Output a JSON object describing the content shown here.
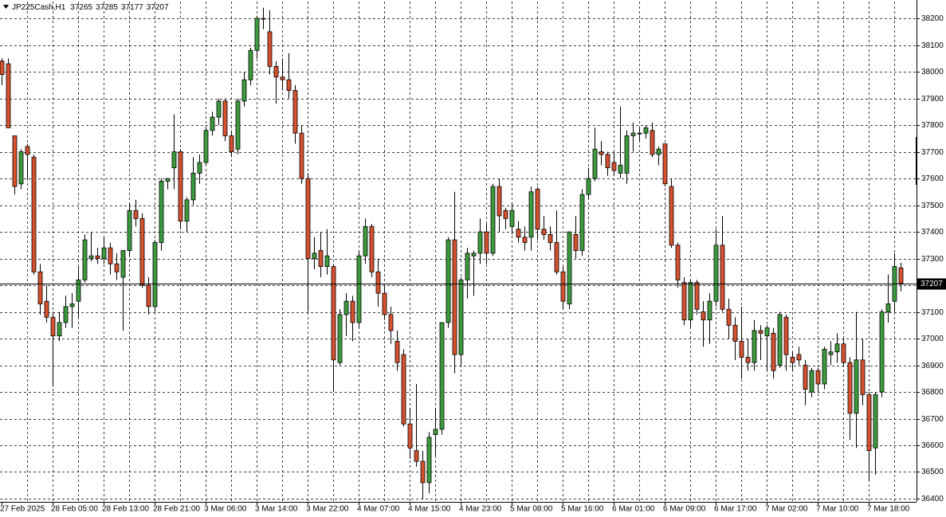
{
  "chart_data": {
    "type": "candlestick",
    "title": "JP225Cash,H1",
    "categories": [
      "27 Feb 2025",
      null,
      null,
      null,
      null,
      null,
      null,
      null,
      "28 Feb 05:00",
      null,
      null,
      null,
      null,
      null,
      null,
      null,
      "28 Feb 13:00",
      null,
      null,
      null,
      null,
      null,
      null,
      null,
      "28 Feb 21:00",
      null,
      null,
      null,
      null,
      null,
      null,
      null,
      "3 Mar 06:00",
      null,
      null,
      null,
      null,
      null,
      null,
      null,
      "3 Mar 14:00",
      null,
      null,
      null,
      null,
      null,
      null,
      null,
      "3 Mar 22:00",
      null,
      null,
      null,
      null,
      null,
      null,
      null,
      "4 Mar 07:00",
      null,
      null,
      null,
      null,
      null,
      null,
      null,
      "4 Mar 15:00",
      null,
      null,
      null,
      null,
      null,
      null,
      null,
      "4 Mar 23:00",
      null,
      null,
      null,
      null,
      null,
      null,
      null,
      "5 Mar 08:00",
      null,
      null,
      null,
      null,
      null,
      null,
      null,
      "5 Mar 16:00",
      null,
      null,
      null,
      null,
      null,
      null,
      null,
      "6 Mar 01:00",
      null,
      null,
      null,
      null,
      null,
      null,
      null,
      "6 Mar 09:00",
      null,
      null,
      null,
      null,
      null,
      null,
      null,
      "6 Mar 17:00",
      null,
      null,
      null,
      null,
      null,
      null,
      null,
      "7 Mar 02:00",
      null,
      null,
      null,
      null,
      null,
      null,
      null,
      "7 Mar 10:00",
      null,
      null,
      null,
      null,
      null,
      null,
      null,
      "7 Mar 18:00",
      null,
      null,
      null,
      null,
      null
    ],
    "open": [
      38040,
      38030,
      37760,
      37580,
      37720,
      37680,
      37250,
      37140,
      37080,
      37010,
      37060,
      37120,
      37140,
      37220,
      37300,
      37310,
      37300,
      37340,
      37280,
      37230,
      37330,
      37480,
      37450,
      37200,
      37120,
      37360,
      37590,
      37640,
      37700,
      37440,
      37520,
      37620,
      37660,
      37780,
      37830,
      37890,
      37760,
      37710,
      37890,
      37970,
      38080,
      38200,
      38150,
      38020,
      37980,
      37970,
      37930,
      37770,
      37600,
      37300,
      37330,
      37270,
      37270,
      36910,
      37090,
      37140,
      37060,
      37310,
      37420,
      37250,
      37170,
      37090,
      36990,
      36940,
      36680,
      36580,
      36540,
      36460,
      36640,
      36660,
      37060,
      37370,
      36940,
      37220,
      37310,
      37320,
      37400,
      37320,
      37570,
      37480,
      37420,
      37410,
      37380,
      37380,
      37560,
      37410,
      37390,
      37360,
      37250,
      37130,
      37390,
      37330,
      37540,
      37600,
      37700,
      37690,
      37660,
      37620,
      37620,
      37760,
      37770,
      37770,
      37780,
      37690,
      37730,
      37570,
      37350,
      37210,
      37070,
      37210,
      37100,
      37070,
      37140,
      37350,
      37110,
      37050,
      36990,
      36930,
      36910,
      37030,
      37010,
      37020,
      36900,
      37080,
      36930,
      36940,
      36900,
      36800,
      36880,
      36830,
      36940,
      36950,
      36980,
      36910,
      36720,
      36920,
      36790,
      36590,
      36800,
      37100,
      37140,
      37265
    ],
    "high": [
      38050,
      38050,
      37760,
      37710,
      37730,
      37690,
      37280,
      37200,
      37100,
      37100,
      37160,
      37170,
      37270,
      37390,
      37400,
      37340,
      37380,
      37360,
      37320,
      37330,
      37510,
      37520,
      37470,
      37230,
      37370,
      37600,
      37600,
      37840,
      37710,
      37530,
      37680,
      37690,
      37790,
      37850,
      37900,
      37900,
      37780,
      37900,
      38000,
      38090,
      38210,
      38240,
      38230,
      38040,
      38050,
      38070,
      37950,
      37800,
      37620,
      37380,
      37400,
      37410,
      37280,
      37110,
      37170,
      37160,
      37330,
      37450,
      37430,
      37300,
      37200,
      37120,
      37030,
      36960,
      36740,
      36830,
      36580,
      36650,
      36740,
      37060,
      37380,
      37550,
      37230,
      37340,
      37330,
      37450,
      37430,
      37580,
      37600,
      37490,
      37510,
      37440,
      37420,
      37570,
      37570,
      37460,
      37420,
      37480,
      37270,
      37400,
      37460,
      37560,
      37640,
      37790,
      37740,
      37700,
      37700,
      37870,
      37780,
      37810,
      37790,
      37800,
      37810,
      37720,
      37730,
      37600,
      37360,
      37230,
      37220,
      37220,
      37140,
      37170,
      37410,
      37460,
      37150,
      37080,
      37120,
      37000,
      37070,
      37050,
      37050,
      37040,
      37100,
      37090,
      36950,
      36970,
      36920,
      36890,
      36890,
      36970,
      36990,
      37020,
      37000,
      36930,
      37100,
      37000,
      36800,
      36800,
      37110,
      37240,
      37320,
      37285
    ],
    "low": [
      37950,
      37790,
      37540,
      37560,
      37600,
      37240,
      37090,
      37060,
      36820,
      36990,
      37040,
      37040,
      37080,
      37210,
      37290,
      37280,
      37280,
      37240,
      37220,
      37030,
      37310,
      37420,
      37190,
      37090,
      37100,
      37330,
      37560,
      37560,
      37410,
      37400,
      37500,
      37580,
      37650,
      37760,
      37800,
      37740,
      37680,
      37690,
      37870,
      37950,
      38050,
      38160,
      37990,
      37880,
      37930,
      37900,
      37730,
      37580,
      37100,
      37260,
      37230,
      37240,
      36800,
      36900,
      37010,
      36990,
      37040,
      37280,
      37230,
      37120,
      37070,
      36980,
      36880,
      36670,
      36550,
      36520,
      36400,
      36420,
      36560,
      36640,
      37040,
      36870,
      36900,
      37150,
      37160,
      37280,
      37280,
      37310,
      37400,
      37410,
      37390,
      37360,
      37330,
      37330,
      37370,
      37370,
      37330,
      37240,
      37110,
      37110,
      37300,
      37310,
      37520,
      37590,
      37650,
      37610,
      37610,
      37600,
      37580,
      37700,
      37740,
      37750,
      37680,
      37650,
      37570,
      37340,
      37190,
      37050,
      37040,
      37090,
      36970,
      36980,
      37120,
      37100,
      37000,
      36920,
      36850,
      36880,
      36880,
      36920,
      36880,
      36850,
      36890,
      36880,
      36880,
      36900,
      36750,
      36780,
      36800,
      36810,
      36900,
      36910,
      36900,
      36620,
      36590,
      36750,
      36470,
      36490,
      36780,
      37060,
      37100,
      37177
    ],
    "close": [
      37990,
      37790,
      37570,
      37700,
      37690,
      37250,
      37130,
      37080,
      37010,
      37060,
      37120,
      37130,
      37220,
      37370,
      37310,
      37300,
      37340,
      37280,
      37250,
      37330,
      37480,
      37450,
      37200,
      37120,
      37360,
      37590,
      37600,
      37700,
      37440,
      37520,
      37620,
      37660,
      37780,
      37830,
      37890,
      37760,
      37700,
      37890,
      37970,
      38080,
      38200,
      38200,
      38020,
      37980,
      37970,
      37930,
      37770,
      37600,
      37300,
      37320,
      37270,
      37310,
      36920,
      37090,
      37140,
      37060,
      37310,
      37420,
      37250,
      37170,
      37090,
      37030,
      36910,
      36680,
      36590,
      36540,
      36460,
      36630,
      36660,
      37060,
      37370,
      36940,
      37220,
      37320,
      37320,
      37400,
      37320,
      37570,
      37460,
      37450,
      37480,
      37380,
      37360,
      37550,
      37410,
      37390,
      37360,
      37250,
      37140,
      37400,
      37330,
      37540,
      37600,
      37710,
      37690,
      37640,
      37630,
      37650,
      37760,
      37770,
      37770,
      37790,
      37690,
      37710,
      37580,
      37350,
      37220,
      37070,
      37210,
      37110,
      37070,
      37140,
      37350,
      37110,
      37050,
      36990,
      36930,
      36910,
      37030,
      37020,
      37040,
      36880,
      37090,
      36940,
      36910,
      36920,
      36810,
      36880,
      36830,
      36960,
      36950,
      36980,
      36910,
      36720,
      36920,
      36790,
      36580,
      36790,
      37100,
      37130,
      37270,
      37207
    ],
    "up_color": "#3c9b3c",
    "down_color": "#d6512e",
    "ylim": [
      36388,
      38263
    ],
    "yticks": [
      36400,
      36500,
      36600,
      36700,
      36800,
      36900,
      37000,
      37100,
      37200,
      37300,
      37400,
      37500,
      37600,
      37700,
      37800,
      37900,
      38000,
      38100,
      38200
    ],
    "grid": true
  }
}
